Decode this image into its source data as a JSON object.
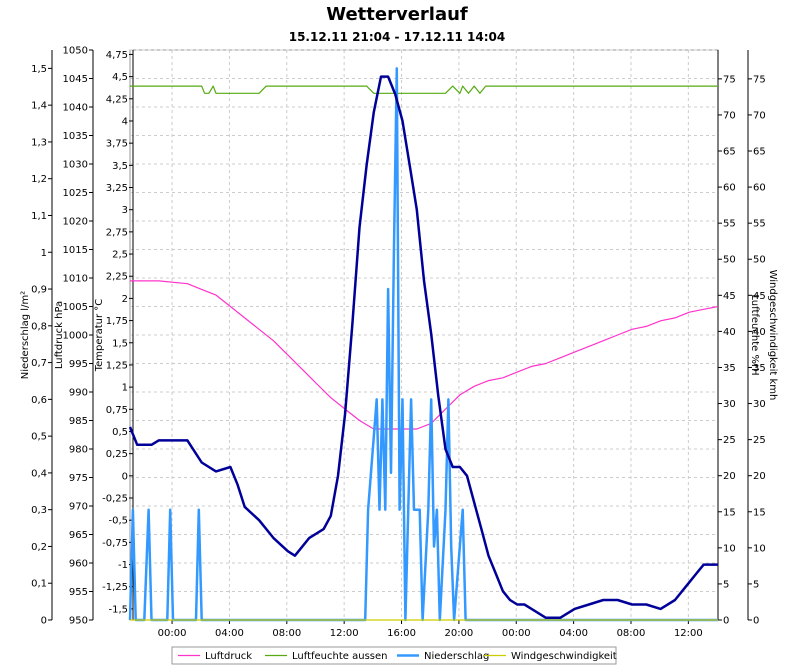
{
  "title": "Wetterverlauf",
  "subtitle": "15.12.11 21:04 - 17.12.11 14:04",
  "colors": {
    "luftdruck": "#ff33cc",
    "luftfeuchte": "#55aa11",
    "niederschlag": "#3399ff",
    "temperatur": "#000099",
    "wind": "#cccc00",
    "grid": "#cccccc"
  },
  "chart_data": {
    "type": "line",
    "title": "Wetterverlauf",
    "subtitle": "15.12.11 21:04 - 17.12.11 14:04",
    "x_range": [
      "15.12.11 21:04",
      "17.12.11 14:04"
    ],
    "x_tick_labels": [
      "00:00",
      "04:00",
      "08:00",
      "12:00",
      "16:00",
      "20:00",
      "00:00",
      "04:00",
      "08:00",
      "12:00"
    ],
    "x_tick_hours": [
      2.933,
      6.933,
      10.933,
      14.933,
      18.933,
      22.933,
      26.933,
      30.933,
      34.933,
      38.933
    ],
    "x_end_hours": 41,
    "grid": true,
    "legend_position": "bottom",
    "axes": {
      "niederschlag": {
        "label": "Niederschlag  l/m²",
        "side": "left",
        "ylim": [
          0,
          1.55
        ],
        "ticks": [
          "0",
          "0,1",
          "0,2",
          "0,3",
          "0,4",
          "0,5",
          "0,6",
          "0,7",
          "0,8",
          "0,9",
          "1",
          "1,1",
          "1,2",
          "1,3",
          "1,4",
          "1,5"
        ]
      },
      "luftdruck": {
        "label": "Luftdruck  hPa",
        "side": "left",
        "ylim": [
          950,
          1050
        ],
        "ticks": [
          "950",
          "955",
          "960",
          "965",
          "970",
          "975",
          "980",
          "985",
          "990",
          "995",
          "1000",
          "1005",
          "1010",
          "1015",
          "1020",
          "1025",
          "1030",
          "1035",
          "1040",
          "1045",
          "1050"
        ]
      },
      "temperatur": {
        "label": "Temperatur  °C",
        "side": "left",
        "ylim": [
          -1.625,
          4.8
        ],
        "ticks": [
          "-1,5",
          "-1,25",
          "-1",
          "-0,75",
          "-0,5",
          "-0,25",
          "0",
          "0,25",
          "0,5",
          "0,75",
          "1",
          "1,25",
          "1,5",
          "1,75",
          "2",
          "2,25",
          "2,5",
          "2,75",
          "3",
          "3,25",
          "3,5",
          "3,75",
          "4",
          "4,25",
          "4,5",
          "4,75"
        ]
      },
      "luftfeuchte": {
        "label": "Luftfeuchte  %rH",
        "side": "right",
        "ylim": [
          0,
          79
        ],
        "ticks": [
          "0",
          "5",
          "10",
          "15",
          "20",
          "25",
          "30",
          "35",
          "40",
          "45",
          "50",
          "55",
          "60",
          "65",
          "70",
          "75"
        ]
      },
      "windgeschwindigkeit": {
        "label": "Windgeschwindigkeit  kmh",
        "side": "right",
        "ylim": [
          0,
          79
        ],
        "ticks": [
          "0",
          "5",
          "10",
          "15",
          "20",
          "25",
          "30",
          "35",
          "40",
          "45",
          "50",
          "55",
          "60",
          "65",
          "70",
          "75"
        ]
      }
    },
    "series": [
      {
        "name": "Luftdruck",
        "axis": "luftdruck",
        "x": [
          0,
          2,
          4,
          5,
          6,
          7,
          8,
          9,
          10,
          11,
          12,
          13,
          14,
          15,
          16,
          17,
          18,
          19,
          20,
          21,
          22,
          23,
          24,
          25,
          26,
          27,
          28,
          29,
          30,
          31,
          32,
          33,
          34,
          35,
          36,
          37,
          38,
          39,
          40,
          41
        ],
        "y": [
          1009.5,
          1009.5,
          1009,
          1008,
          1007,
          1005,
          1003,
          1001,
          999,
          996.5,
          994,
          991.5,
          989,
          987,
          985,
          983.5,
          983.5,
          983.5,
          983.5,
          984.5,
          987,
          989.5,
          991,
          992,
          992.5,
          993.5,
          994.5,
          995,
          996,
          997,
          998,
          999,
          1000,
          1001,
          1001.5,
          1002.5,
          1003,
          1004,
          1004.5,
          1005
        ]
      },
      {
        "name": "Luftfeuchte aussen",
        "axis": "luftfeuchte",
        "x": [
          0,
          5,
          5.2,
          5.5,
          5.8,
          6,
          6.3,
          9,
          9.5,
          16.5,
          17,
          22,
          22.5,
          23,
          23.2,
          23.6,
          24,
          24.4,
          24.8,
          25,
          41
        ],
        "y": [
          74,
          74,
          73,
          73,
          74,
          73,
          73,
          73,
          74,
          74,
          73,
          73,
          74,
          73,
          74,
          73,
          74,
          73,
          74,
          74,
          74
        ]
      },
      {
        "name": "Niederschlag",
        "axis": "niederschlag",
        "x": [
          0,
          0.2,
          0.4,
          1,
          1.3,
          1.5,
          2.6,
          2.8,
          3,
          4.6,
          4.8,
          5,
          16.4,
          16.6,
          17.2,
          17.4,
          17.6,
          17.8,
          18,
          18.2,
          18.4,
          18.6,
          18.8,
          19,
          19.2,
          19.6,
          19.8,
          20.2,
          20.4,
          20.8,
          21,
          21.2,
          21.4,
          21.6,
          22,
          22.2,
          22.4,
          22.6,
          23.2,
          23.4,
          41
        ],
        "y": [
          0,
          0.3,
          0,
          0,
          0.3,
          0,
          0,
          0.3,
          0,
          0,
          0.3,
          0,
          0,
          0.3,
          0.6,
          0.3,
          0.6,
          0.3,
          0.9,
          0.4,
          1.0,
          1.5,
          0.3,
          0.6,
          0,
          0.6,
          0.3,
          0.3,
          0,
          0.3,
          0.6,
          0.2,
          0.3,
          0,
          0.3,
          0.6,
          0.2,
          0,
          0.3,
          0,
          0
        ]
      },
      {
        "name": "Temperatur",
        "axis": "temperatur",
        "x": [
          0,
          0.5,
          1,
          1.5,
          2,
          2.5,
          3,
          4,
          5,
          6,
          7,
          7.5,
          8,
          9,
          10,
          11,
          11.5,
          12,
          12.5,
          13,
          13.5,
          14,
          14.5,
          15,
          15.5,
          16,
          16.5,
          17,
          17.5,
          18,
          18.5,
          19,
          19.5,
          20,
          20.5,
          21,
          21.5,
          22,
          22.5,
          23,
          23.5,
          24,
          24.5,
          25,
          25.5,
          26,
          26.5,
          27,
          27.5,
          28,
          29,
          30,
          31,
          32,
          33,
          34,
          35,
          36,
          37,
          38,
          38.5,
          39,
          39.5,
          40,
          41
        ],
        "y": [
          0.55,
          0.35,
          0.35,
          0.35,
          0.4,
          0.4,
          0.4,
          0.4,
          0.15,
          0.05,
          0.1,
          -0.1,
          -0.35,
          -0.5,
          -0.7,
          -0.85,
          -0.9,
          -0.8,
          -0.7,
          -0.65,
          -0.6,
          -0.45,
          0,
          0.7,
          1.7,
          2.8,
          3.5,
          4.1,
          4.5,
          4.5,
          4.3,
          4.0,
          3.5,
          3.0,
          2.2,
          1.6,
          0.9,
          0.3,
          0.1,
          0.1,
          0,
          -0.3,
          -0.6,
          -0.9,
          -1.1,
          -1.3,
          -1.4,
          -1.45,
          -1.45,
          -1.5,
          -1.6,
          -1.6,
          -1.5,
          -1.45,
          -1.4,
          -1.4,
          -1.45,
          -1.45,
          -1.5,
          -1.4,
          -1.3,
          -1.2,
          -1.1,
          -1.0,
          -1.0
        ]
      },
      {
        "name": "Windgeschwindigkeit",
        "axis": "windgeschwindigkeit",
        "x": [
          0,
          41
        ],
        "y": [
          0,
          0
        ]
      }
    ]
  },
  "legend": [
    {
      "key": "luftdruck",
      "label": "Luftdruck"
    },
    {
      "key": "luftfeuchte",
      "label": "Luftfeuchte aussen"
    },
    {
      "key": "niederschlag",
      "label": "Niederschlag"
    },
    {
      "key": "wind",
      "label": "Windgeschwindigkeit"
    }
  ]
}
